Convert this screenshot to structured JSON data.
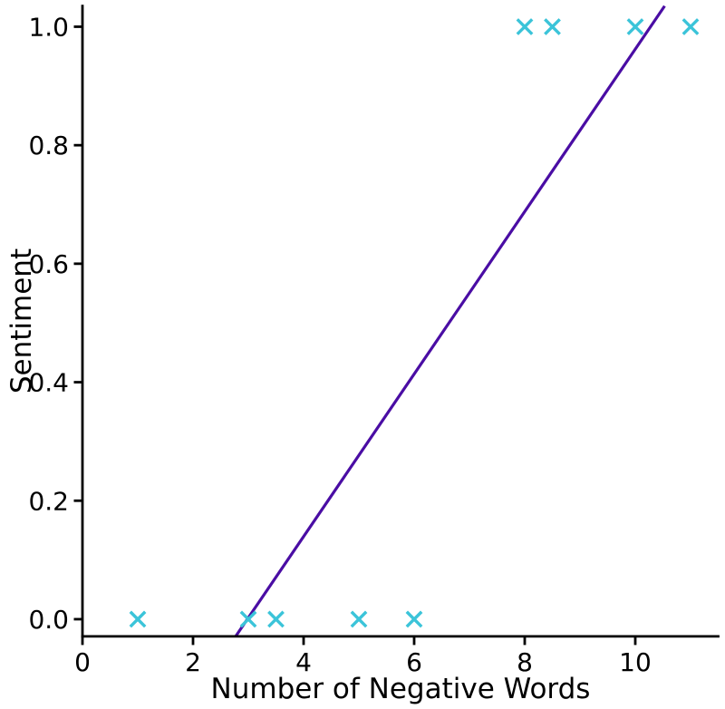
{
  "chart_data": {
    "type": "scatter",
    "title": "",
    "xlabel": "Number of Negative Words",
    "ylabel": "Sentiment",
    "xlim": [
      0,
      11.5
    ],
    "ylim": [
      -0.029,
      1.035
    ],
    "xticks": [
      0,
      2,
      4,
      6,
      8,
      10
    ],
    "xtick_labels": [
      "0",
      "2",
      "4",
      "6",
      "8",
      "10"
    ],
    "yticks": [
      0.0,
      0.2,
      0.4,
      0.6,
      0.8,
      1.0
    ],
    "ytick_labels": [
      "0.0",
      "0.2",
      "0.4",
      "0.6",
      "0.8",
      "1.0"
    ],
    "grid": false,
    "legend": "none",
    "spines": [
      "left",
      "bottom"
    ],
    "axis_color": "#000000",
    "text_color": "#000000",
    "background": "#ffffff",
    "series": [
      {
        "name": "observations",
        "type": "scatter",
        "marker": "x",
        "color": "#3bc4d9",
        "points": [
          [
            1,
            0
          ],
          [
            3,
            0
          ],
          [
            3.5,
            0
          ],
          [
            5,
            0
          ],
          [
            6,
            0
          ],
          [
            8,
            1
          ],
          [
            8.5,
            1
          ],
          [
            10,
            1
          ],
          [
            11,
            1
          ]
        ]
      },
      {
        "name": "fitted-line",
        "type": "line",
        "color": "#4a0da4",
        "slope": 0.137,
        "intercept": -0.408,
        "points": [
          [
            2.771,
            -0.029
          ],
          [
            10.531,
            1.035
          ]
        ]
      }
    ]
  }
}
